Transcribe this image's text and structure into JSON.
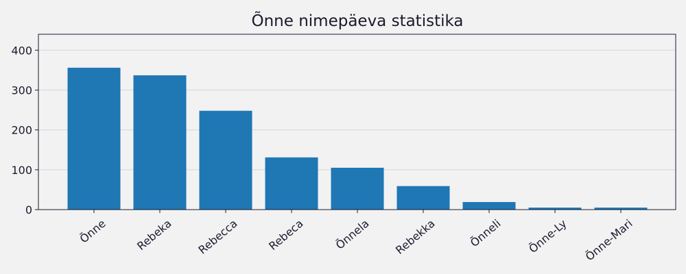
{
  "chart_data": {
    "type": "bar",
    "title": "Õnne nimepäeva statistika",
    "xlabel": "",
    "ylabel": "",
    "categories": [
      "Õnne",
      "Rebeka",
      "Rebecca",
      "Rebeca",
      "Õnnela",
      "Rebekka",
      "Õnneli",
      "Õnne-Ly",
      "Õnne-Mari"
    ],
    "values": [
      356,
      337,
      248,
      131,
      105,
      59,
      19,
      5,
      5
    ],
    "ylim": [
      0,
      440
    ],
    "yticks": [
      0,
      100,
      200,
      300,
      400
    ],
    "grid": "horizontal",
    "bar_color": "#1f77b4",
    "legend": "none"
  }
}
